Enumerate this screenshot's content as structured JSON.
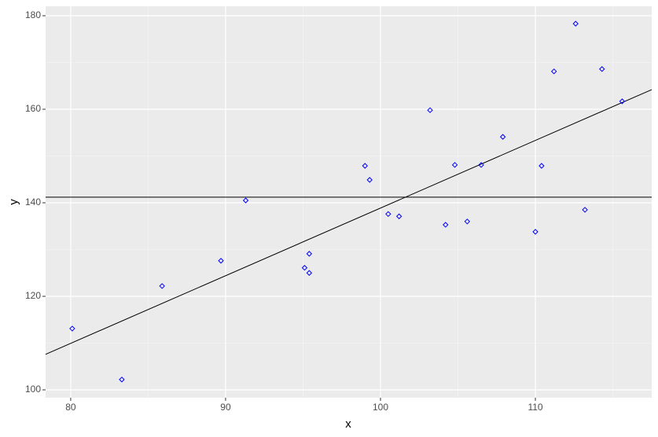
{
  "chart_data": {
    "type": "scatter",
    "x_label": "x",
    "y_label": "y",
    "x": [
      80.1,
      83.3,
      85.9,
      89.7,
      91.3,
      95.1,
      95.4,
      95.4,
      99.0,
      99.3,
      100.5,
      101.2,
      103.2,
      104.2,
      104.8,
      105.6,
      106.5,
      107.9,
      110.0,
      110.4,
      111.2,
      112.6,
      113.2,
      114.3,
      115.6
    ],
    "y": [
      113.1,
      102.2,
      122.2,
      127.6,
      140.5,
      126.1,
      129.1,
      125.0,
      147.9,
      144.9,
      137.6,
      137.1,
      159.8,
      135.3,
      148.1,
      136.0,
      148.1,
      154.1,
      133.8,
      147.9,
      168.1,
      178.3,
      138.5,
      168.6,
      161.7
    ],
    "color": "#0000ff",
    "hline": 141.2,
    "fit": {
      "x": [
        78.38,
        117.51
      ],
      "y": [
        107.6,
        164.2
      ]
    },
    "xlim": [
      78.38,
      117.51
    ],
    "ylim": [
      98.32,
      182.02
    ],
    "xticks": [
      80,
      90,
      100,
      110
    ],
    "yticks": [
      100,
      120,
      140,
      160,
      180
    ],
    "xminor": [
      85,
      95,
      105,
      115
    ],
    "yminor": [
      110,
      130,
      150,
      170
    ],
    "grid": true
  }
}
